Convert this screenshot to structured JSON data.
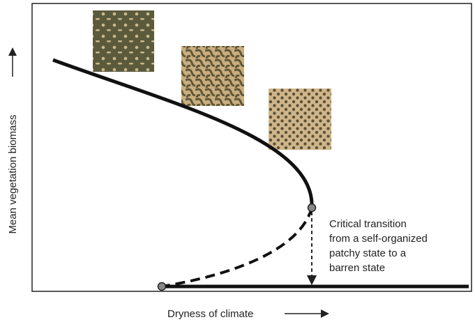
{
  "axes": {
    "y_label": "Mean vegetation biomass",
    "x_label": "Dryness of climate"
  },
  "annotation": {
    "lines": [
      "Critical transition",
      "from a self-organized",
      "patchy state to a",
      "barren state"
    ]
  }
}
